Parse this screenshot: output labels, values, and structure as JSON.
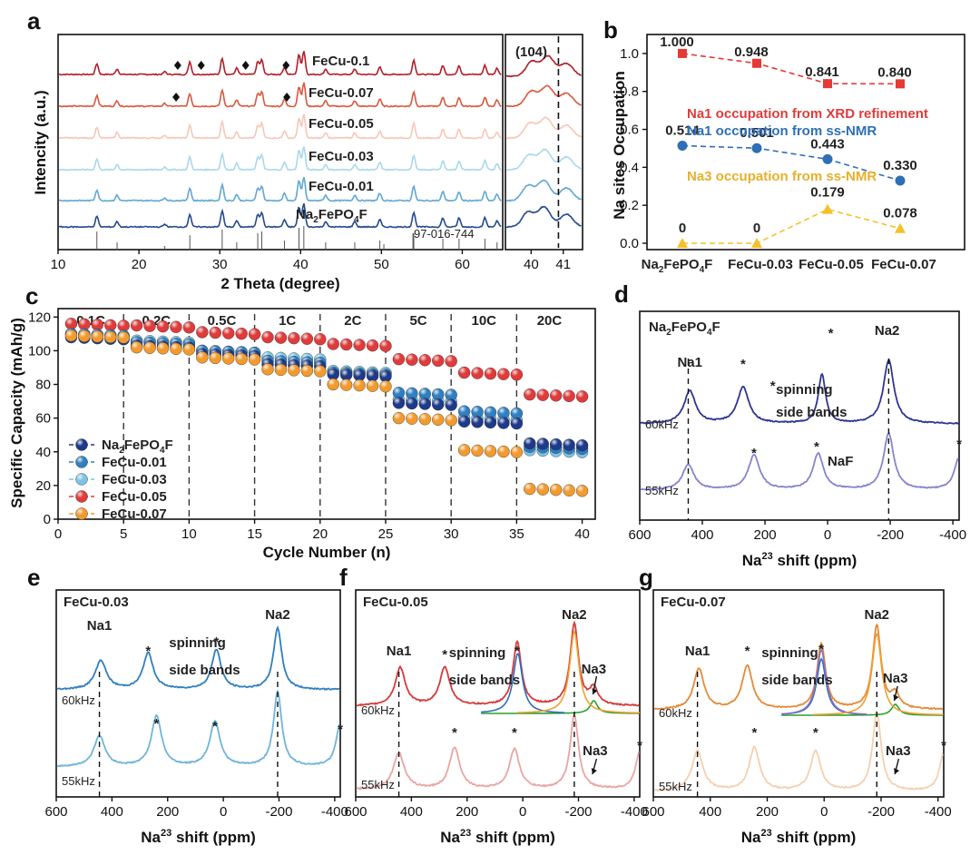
{
  "panels": {
    "a": "a",
    "b": "b",
    "c": "c",
    "d": "d",
    "e": "e",
    "f": "f",
    "g": "g"
  },
  "colors": {
    "nfpf": "#1e3a8a",
    "c001": "#2f7fc1",
    "c003": "#7ec3e6",
    "c005": "#e03b3b",
    "c007": "#f29a2e",
    "xrd": [
      "#b11f2a",
      "#d9583e",
      "#f7c6b8",
      "#a9d8ec",
      "#5fa8d3",
      "#244a8e"
    ],
    "d60": "#2f3590",
    "d55": "#8585cc",
    "e60": "#2f7fc1",
    "e55": "#6fb5d9",
    "f60": "#d63a3a",
    "f55": "#eaa5a5",
    "g60": "#e38b3a",
    "g55": "#f5d0b0",
    "fitBlue": "#2d6fc0",
    "fitOrange": "#f0a030",
    "fitGreen": "#2ca02c",
    "fitPurple": "#8a70c0"
  },
  "chart_data": [
    {
      "id": "a",
      "type": "line",
      "xlabel": "2 Theta (degree)",
      "ylabel": "Intencity (a.u.)",
      "xlim": [
        10,
        65
      ],
      "xticks": [
        10,
        20,
        30,
        40,
        50,
        60
      ],
      "series": [
        {
          "name": "FeCu-0.1"
        },
        {
          "name": "FeCu-0.07"
        },
        {
          "name": "FeCu-0.05"
        },
        {
          "name": "FeCu-0.03"
        },
        {
          "name": "FeCu-0.01"
        },
        {
          "name": "Na2FePO4F",
          "label_main": "Na",
          "label_sub1": "2",
          "label_mid": "FePO",
          "label_sub2": "4",
          "label_end": "F"
        }
      ],
      "peaks": [
        14.8,
        17.3,
        23.2,
        26.3,
        30.3,
        32.1,
        34.7,
        35.2,
        38.0,
        39.8,
        40.4,
        43.1,
        46.7,
        49.8,
        54.0,
        57.6,
        59.6,
        62.8,
        64.3
      ],
      "diamonds": [
        {
          "x": 24.8,
          "row": 0
        },
        {
          "x": 27.7,
          "row": 0
        },
        {
          "x": 33.2,
          "row": 0
        },
        {
          "x": 38.2,
          "row": 0
        },
        {
          "x": 24.6,
          "row": 1
        },
        {
          "x": 38.3,
          "row": 1
        }
      ],
      "ref_label": "97-016-744",
      "ref_sticks": [
        14.8,
        17.3,
        23.2,
        26.3,
        30.3,
        32.1,
        34.7,
        35.2,
        38.0,
        39.8,
        40.4,
        43.1,
        46.7,
        49.8,
        50.3,
        53.9,
        54.0,
        57.6,
        59.6,
        62.8,
        64.3
      ]
    },
    {
      "id": "a-inset",
      "type": "line",
      "xlim": [
        39.2,
        41.6
      ],
      "xticks": [
        "40",
        "41"
      ],
      "annotation": "(104)",
      "dashed_x": 40.85,
      "peaks": [
        39.9,
        40.4,
        41.1
      ]
    },
    {
      "id": "b",
      "type": "line",
      "ylabel": "Na sites Occupation",
      "ylim": [
        0,
        1.1
      ],
      "yticks": [
        "0.0",
        "0.2",
        "0.4",
        "0.6",
        "0.8",
        "1.0"
      ],
      "categories_main": [
        "Na",
        "FeCu-0.03",
        "FeCu-0.05",
        "FeCu-0.07"
      ],
      "cat0": {
        "main": "Na",
        "s1": "2",
        "mid": "FePO",
        "s2": "4",
        "end": "F"
      },
      "series": [
        {
          "name": "Na1 occupation from XRD refinement",
          "values": [
            1.0,
            0.948,
            0.841,
            0.84
          ],
          "labels": [
            "1.000",
            "0.948",
            "0.841",
            "0.840"
          ]
        },
        {
          "name": "Na1 occupation from ss-NMR",
          "values": [
            0.514,
            0.501,
            0.443,
            0.33
          ],
          "labels": [
            "0.514",
            "0.501",
            "0.443",
            "0.330"
          ]
        },
        {
          "name": "Na3 occupation from ss-NMR",
          "values": [
            0,
            0,
            0.179,
            0.078
          ],
          "labels": [
            "0",
            "0",
            "0.179",
            "0.078"
          ]
        }
      ]
    },
    {
      "id": "c",
      "type": "scatter",
      "xlabel": "Cycle Number (n)",
      "ylabel": "Specific Capacity (mAh/g)",
      "xlim": [
        0,
        41
      ],
      "ylim": [
        0,
        125
      ],
      "xticks": [
        "0",
        "5",
        "10",
        "15",
        "20",
        "25",
        "30",
        "35",
        "40"
      ],
      "yticks": [
        "0",
        "20",
        "40",
        "60",
        "80",
        "100",
        "120"
      ],
      "rates": [
        "0.1C",
        "0.2C",
        "0.5C",
        "1C",
        "2C",
        "5C",
        "10C",
        "20C"
      ],
      "legend": [
        "Na2FePO4F",
        "FeCu-0.01",
        "FeCu-0.03",
        "FeCu-0.05",
        "FeCu-0.07"
      ],
      "legend0": {
        "main": "Na",
        "s1": "2",
        "mid": "FePO",
        "s2": "4",
        "end": "F"
      },
      "series": [
        {
          "name": "FeCu-0.05",
          "segments": [
            116,
            115,
            111,
            108,
            104,
            95,
            87,
            74
          ]
        },
        {
          "name": "FeCu-0.03",
          "segments": [
            110,
            106,
            100,
            96,
            88,
            71,
            60,
            41
          ]
        },
        {
          "name": "FeCu-0.01",
          "segments": [
            110,
            105,
            100,
            94,
            87,
            75,
            64,
            43
          ]
        },
        {
          "name": "Na2FePO4F",
          "segments": [
            108,
            103,
            98,
            92,
            86,
            69,
            58,
            45
          ]
        },
        {
          "name": "FeCu-0.07",
          "segments": [
            109,
            102,
            96,
            89,
            80,
            60,
            41,
            18
          ]
        }
      ]
    },
    {
      "id": "d",
      "type": "line",
      "title_main": "Na",
      "title_sub1": "2",
      "title_mid": "FePO",
      "title_sub2": "4",
      "title_end": "F",
      "xlabel_main": "Na",
      "xlabel_sup": "23",
      "xlabel_end": " shift (ppm)",
      "xlim": [
        600,
        -420
      ],
      "xticks": [
        "600",
        "400",
        "200",
        "0",
        "-200",
        "-400"
      ],
      "traces": [
        {
          "name": "60kHz"
        },
        {
          "name": "55kHz"
        }
      ],
      "labels": {
        "na1": "Na1",
        "na2": "Na2",
        "ssb": "spinning",
        "ssb2": "side bands",
        "naf": "NaF",
        "star": "*"
      },
      "na1_ppm": 445,
      "na2_ppm": -195
    },
    {
      "id": "e",
      "type": "line",
      "title": "FeCu-0.03",
      "xlabel_main": "Na",
      "xlabel_sup": "23",
      "xlabel_end": " shift (ppm)",
      "xlim": [
        600,
        -420
      ],
      "xticks": [
        "600",
        "400",
        "200",
        "0",
        "-200",
        "-400"
      ],
      "traces": [
        {
          "name": "60kHz"
        },
        {
          "name": "55kHz"
        }
      ],
      "labels": {
        "na1": "Na1",
        "na2": "Na2",
        "ssb": "spinning",
        "ssb2": "side bands",
        "star": "*"
      }
    },
    {
      "id": "f",
      "type": "line",
      "title": "FeCu-0.05",
      "xlabel_main": "Na",
      "xlabel_sup": "23",
      "xlabel_end": " shift (ppm)",
      "xlim": [
        600,
        -420
      ],
      "xticks": [
        "600",
        "400",
        "200",
        "0",
        "-200",
        "-400"
      ],
      "traces": [
        {
          "name": "60kHz"
        },
        {
          "name": "55kHz"
        }
      ],
      "labels": {
        "na1": "Na1",
        "na2": "Na2",
        "na3": "Na3",
        "na3b": "Na3",
        "ssb": "spinning",
        "ssb2": "side bands",
        "star": "*"
      }
    },
    {
      "id": "g",
      "type": "line",
      "title": "FeCu-0.07",
      "xlabel_main": "Na",
      "xlabel_sup": "23",
      "xlabel_end": " shift (ppm)",
      "xlim": [
        600,
        -420
      ],
      "xticks": [
        "600",
        "400",
        "200",
        "0",
        "-200",
        "-400"
      ],
      "traces": [
        {
          "name": "60kHz"
        },
        {
          "name": "55kHz"
        }
      ],
      "labels": {
        "na1": "Na1",
        "na2": "Na2",
        "na3": "Na3",
        "na3b": "Na3",
        "ssb": "spinning",
        "ssb2": "side bands",
        "star": "*"
      }
    }
  ]
}
